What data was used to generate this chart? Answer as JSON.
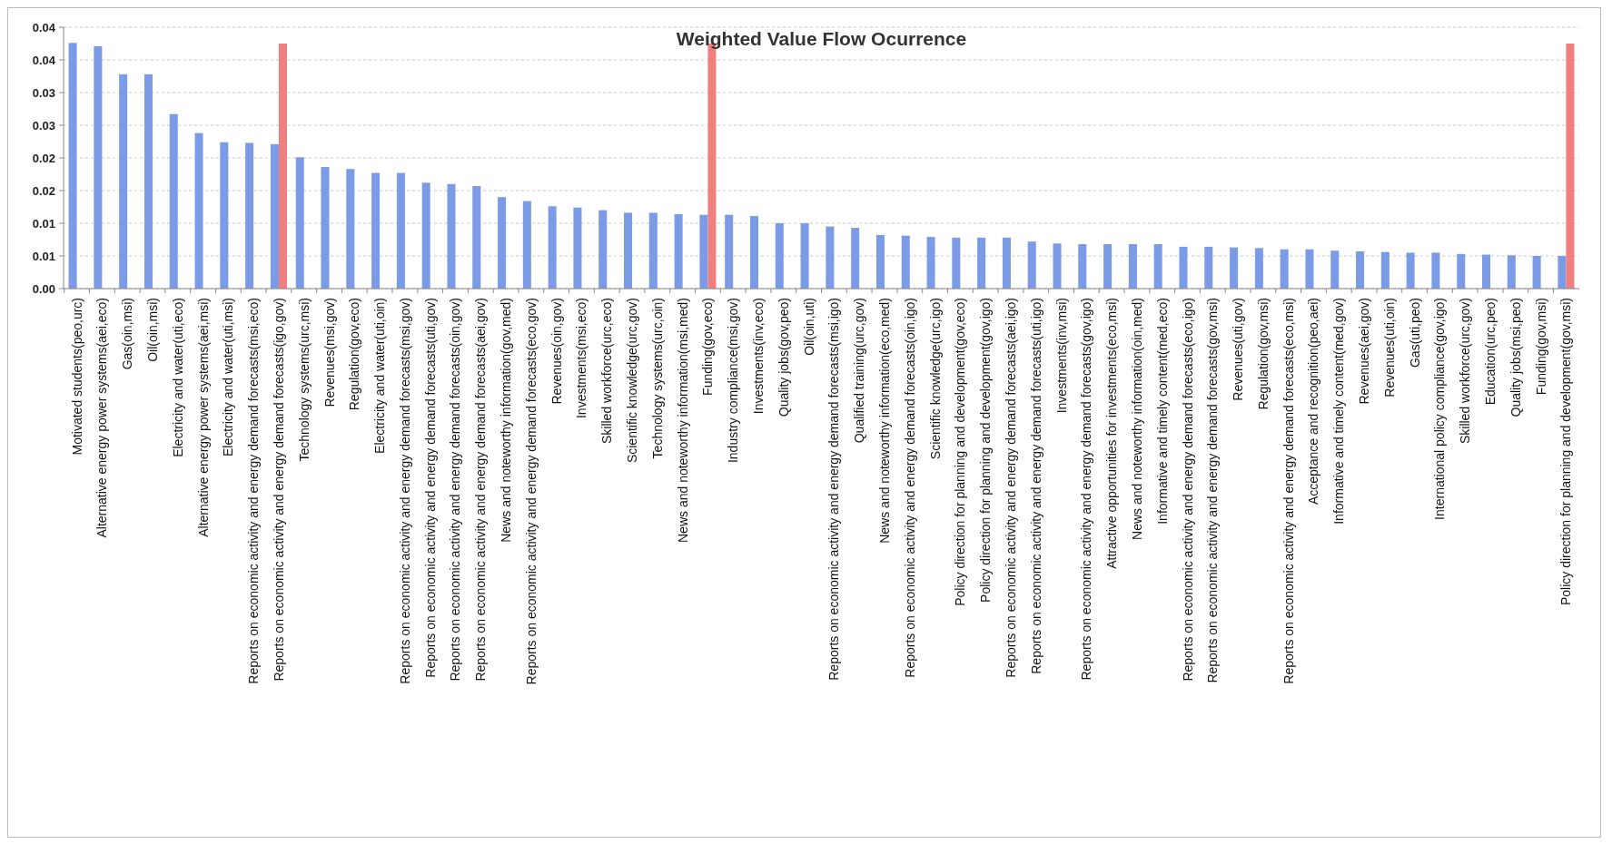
{
  "chart_data": {
    "type": "bar",
    "title": "Weighted Value Flow Ocurrence",
    "categories": [
      "Motivated students(peo,urc)",
      "Alternative energy power systems(aei,eco)",
      "Gas(oin,msi)",
      "Oil(oin,msi)",
      "Electricity and water(uti,eco)",
      "Alternative energy power systems(aei,msi)",
      "Electricity and water(uti,msi)",
      "Reports on economic activity and energy demand forecasts(msi,eco)",
      "Reports on economic activity and energy demand forecasts(igo,gov)",
      "Technology systems(urc,msi)",
      "Revenues(msi,gov)",
      "Regulation(gov,eco)",
      "Electricity and water(uti,oin)",
      "Reports on economic activity and energy demand forecasts(msi,gov)",
      "Reports on economic activity and energy demand forecasts(uti,gov)",
      "Reports on economic activity and energy demand forecasts(oin,gov)",
      "Reports on economic activity and energy demand forecasts(aei,gov)",
      "News and noteworthy information(gov,med)",
      "Reports on economic activity and energy demand forecasts(eco,gov)",
      "Revenues(oin,gov)",
      "Investments(msi,eco)",
      "Skilled workforce(urc,eco)",
      "Scientific knowledge(urc,gov)",
      "Technology systems(urc,oin)",
      "News and noteworthy information(msi,med)",
      "Funding(gov,eco)",
      "Industry compliance(msi,gov)",
      "Investments(inv,eco)",
      "Quality jobs(gov,peo)",
      "Oil(oin,uti)",
      "Reports on economic activity and energy demand forecasts(msi,igo)",
      "Qualified training(urc,gov)",
      "News and noteworthy information(eco,med)",
      "Reports on economic activity and energy demand forecasts(oin,igo)",
      "Scientific knowledge(urc,igo)",
      "Policy direction for planning and development(gov,eco)",
      "Policy direction for planning and development(gov,igo)",
      "Reports on economic activity and energy demand forecasts(aei,igo)",
      "Reports on economic activity and energy demand forecasts(uti,igo)",
      "Investments(inv,msi)",
      "Reports on economic activity and energy demand forecasts(gov,igo)",
      "Attractive opportunities for investments(eco,msi)",
      "News and noteworthy information(oin,med)",
      "Informative and timely content(med,eco)",
      "Reports on economic activity and energy demand forecasts(eco,igo)",
      "Reports on economic activity and energy demand forecasts(gov,msi)",
      "Revenues(uti,gov)",
      "Regulation(gov,msi)",
      "Reports on economic activity and energy demand forecasts(eco,msi)",
      "Acceptance and recognition(peo,aei)",
      "Informative and timely content(med,gov)",
      "Revenues(aei,gov)",
      "Revenues(uti,oin)",
      "Gas(uti,peo)",
      "International policy compliance(gov,igo)",
      "Skilled workforce(urc,gov)",
      "Education(urc,peo)",
      "Quality jobs(msi,peo)",
      "Funding(gov,msi)",
      "Policy direction for planning and development(gov,msi)"
    ],
    "series": [
      {
        "color": "#7b9be6",
        "values": [
          0.0376,
          0.0371,
          0.0328,
          0.0328,
          0.0267,
          0.0238,
          0.0224,
          0.0223,
          0.0221,
          0.0201,
          0.0186,
          0.0183,
          0.0177,
          0.0177,
          0.0162,
          0.016,
          0.0157,
          0.014,
          0.0134,
          0.0126,
          0.0124,
          0.012,
          0.0116,
          0.0116,
          0.0114,
          0.0113,
          0.0113,
          0.0111,
          0.01,
          0.01,
          0.0095,
          0.0093,
          0.0082,
          0.0081,
          0.0079,
          0.0078,
          0.0078,
          0.0078,
          0.0072,
          0.0069,
          0.0068,
          0.0068,
          0.0068,
          0.0068,
          0.0064,
          0.0064,
          0.0063,
          0.0062,
          0.006,
          0.006,
          0.0058,
          0.0057,
          0.0056,
          0.0055,
          0.0055,
          0.0053,
          0.0052,
          0.0051,
          0.005,
          0.005
        ]
      },
      {
        "color": "#f07f7f",
        "values": [
          null,
          null,
          null,
          null,
          null,
          null,
          null,
          null,
          0.0375,
          null,
          null,
          null,
          null,
          null,
          null,
          null,
          null,
          null,
          null,
          null,
          null,
          null,
          null,
          null,
          null,
          0.0375,
          null,
          null,
          null,
          null,
          null,
          null,
          null,
          null,
          null,
          null,
          null,
          null,
          null,
          null,
          null,
          null,
          null,
          null,
          null,
          null,
          null,
          null,
          null,
          null,
          null,
          null,
          null,
          null,
          null,
          null,
          null,
          null,
          null,
          0.0375
        ]
      }
    ],
    "ylim": [
      0,
      0.04
    ],
    "yticks": [
      {
        "value": 0,
        "label": "0.00"
      },
      {
        "value": 0.005,
        "label": "0.01"
      },
      {
        "value": 0.01,
        "label": "0.01"
      },
      {
        "value": 0.015,
        "label": "0.02"
      },
      {
        "value": 0.02,
        "label": "0.02"
      },
      {
        "value": 0.025,
        "label": "0.03"
      },
      {
        "value": 0.03,
        "label": "0.03"
      },
      {
        "value": 0.035,
        "label": "0.04"
      },
      {
        "value": 0.04,
        "label": "0.04"
      }
    ],
    "grid": "y"
  }
}
